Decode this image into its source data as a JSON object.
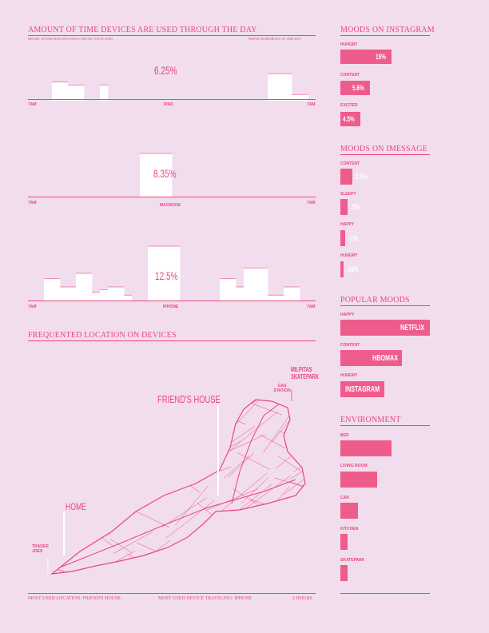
{
  "chart_data": [
    {
      "type": "area",
      "title": "AMOUNT OF TIME DEVICES ARE USED THROUGH THE DAY",
      "subtitle": "HEIGHT OF BAR INDICATES HOW LONG DEVICE IS USED",
      "note": "*REFER INCREMENTS OF TIME KEY",
      "device": "IPAD",
      "percent": "6.25%",
      "x_start": "7AM",
      "x_end": "7AM",
      "values": [
        0,
        0,
        0,
        0.45,
        0.45,
        0.38,
        0.38,
        0,
        0,
        0.38,
        0,
        0,
        0,
        0,
        0,
        0,
        0,
        0,
        0,
        0,
        0,
        0,
        0,
        0,
        0,
        0,
        0,
        0,
        0,
        0,
        0.65,
        0.65,
        0.65,
        0.15,
        0.15,
        0
      ]
    },
    {
      "type": "area",
      "device": "MACBOOK",
      "percent": "8.35%",
      "x_start": "7AM",
      "x_end": "7AM",
      "values": [
        0,
        0,
        0,
        0,
        0,
        0,
        0,
        0,
        0,
        0,
        0,
        0,
        0,
        0,
        1,
        1,
        1,
        1,
        0,
        0,
        0,
        0,
        0,
        0,
        0,
        0,
        0,
        0,
        0,
        0,
        0,
        0,
        0,
        0,
        0,
        0
      ]
    },
    {
      "type": "area",
      "device": "IPHONE",
      "percent": "12.5%",
      "x_start": "7AM",
      "x_end": "7AM",
      "values": [
        0,
        0,
        0.4,
        0.4,
        0.25,
        0.25,
        0.5,
        0.5,
        0.15,
        0.2,
        0.25,
        0.25,
        0.1,
        0,
        0,
        1,
        1,
        1,
        1,
        0,
        0,
        0,
        0,
        0,
        0.4,
        0.4,
        0.25,
        0.6,
        0.6,
        0.6,
        0.1,
        0.1,
        0.25,
        0.25,
        0,
        0
      ]
    },
    {
      "type": "bar",
      "title": "MOODS ON INSTAGRAM",
      "categories": [
        "HUNGRY",
        "CONTENT",
        "EXCITED"
      ],
      "values": [
        15,
        5.6,
        4.5
      ],
      "labels": [
        "15%",
        "5.6%",
        "4.5%"
      ]
    },
    {
      "type": "bar",
      "title": "MOODS ON IMESSAGE",
      "categories": [
        "CONTENT",
        "SLEEPY",
        "HAPPY",
        "HUNGRY"
      ],
      "values": [
        2.5,
        0.5,
        0.1,
        0.01
      ],
      "labels": [
        "2.5%",
        ".5%",
        ".1%",
        ".01%"
      ]
    },
    {
      "type": "bar",
      "title": "POPULAR MOODS",
      "categories": [
        "HAPPY",
        "CONTENT",
        "HUNGRY"
      ],
      "values": [
        100,
        70,
        50
      ],
      "labels": [
        "NETFLIX",
        "HBOMAX",
        "INSTAGRAM"
      ]
    },
    {
      "type": "bar",
      "title": "ENVIRONMENT",
      "categories": [
        "BED",
        "LIVING ROOM",
        "CAR",
        "KITCHEN",
        "SKATEPARK"
      ],
      "values": [
        100,
        72,
        35,
        14,
        14
      ]
    }
  ],
  "map": {
    "title": "FREQUENTED LOCATION ON DEVICES",
    "labels": {
      "milpitas": "MILPITAS SKATEPARK",
      "gas": "GAS STATION",
      "friends": "FRIEND'S HOUSE",
      "home": "HOME",
      "trader": "TRADER JOES"
    }
  },
  "footer": {
    "location": "MOST USED LOCATION: FRIEND'S HOUSE",
    "device": "MOST USED DEVICE TRAVELING: IPHONE",
    "hours": "2 HOURS"
  },
  "colors": {
    "accent": "#e8467f",
    "bar": "#ee5c8c",
    "background": "#f2ddee"
  }
}
